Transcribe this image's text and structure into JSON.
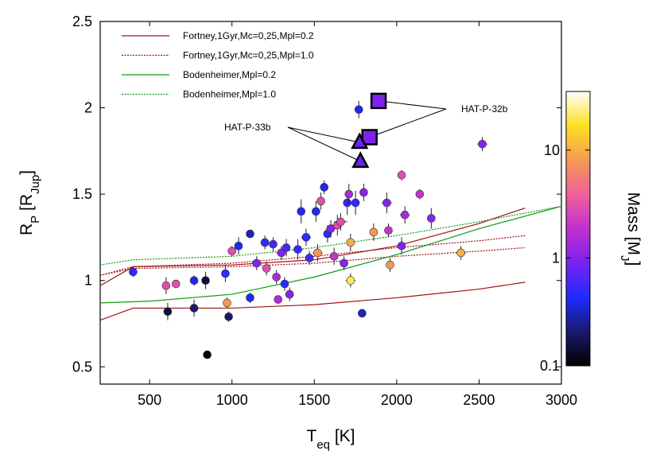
{
  "chart_data": {
    "type": "scatter",
    "x_label": [
      "T",
      "eq",
      " [K]"
    ],
    "y_label": [
      "R",
      "P",
      " [R",
      "Jup",
      "]"
    ],
    "color_label": [
      "Mass [M",
      "J",
      "]"
    ],
    "xlim": [
      200,
      3000
    ],
    "xticks": [
      500,
      1000,
      1500,
      2000,
      2500,
      3000
    ],
    "ylim": [
      0.4,
      2.5
    ],
    "yticks": [
      0.5,
      1,
      1.5,
      2,
      2.5
    ],
    "clim": [
      0.1,
      35
    ],
    "cticks": [
      0.1,
      1,
      10
    ],
    "color_log": true,
    "colormap": [
      "#000000",
      "#1a1a6e",
      "#1e2bff",
      "#7a22ee",
      "#c030d0",
      "#f0609a",
      "#f59a50",
      "#ffe020",
      "#ffffff"
    ],
    "legend": "upper-left",
    "lines": [
      {
        "name": "Fortney,1Gyr,Mc=0,25,Mpl=0.2",
        "color": "#a01010",
        "dash": "solid",
        "curves": [
          {
            "x": [
              200,
              400,
              1000,
              1500,
              2000,
              2500,
              2780
            ],
            "y": [
              0.97,
              1.08,
              1.09,
              1.12,
              1.2,
              1.33,
              1.42
            ]
          },
          {
            "x": [
              200,
              400,
              1000,
              1500,
              2000,
              2500,
              2780
            ],
            "y": [
              0.77,
              0.84,
              0.84,
              0.86,
              0.9,
              0.95,
              0.99
            ]
          }
        ]
      },
      {
        "name": "Fortney,1Gyr,Mc=0,25,Mpl=1.0",
        "color": "#a01010",
        "dash": "dotted",
        "curves": [
          {
            "x": [
              200,
              400,
              1000,
              1500,
              2000,
              2500,
              2780
            ],
            "y": [
              1.03,
              1.08,
              1.1,
              1.14,
              1.19,
              1.23,
              1.26
            ]
          },
          {
            "x": [
              200,
              400,
              1000,
              1500,
              2000,
              2500,
              2780
            ],
            "y": [
              1.03,
              1.07,
              1.08,
              1.1,
              1.14,
              1.17,
              1.19
            ]
          }
        ]
      },
      {
        "name": "Bodenheimer,Mpl=0.2",
        "color": "#109a10",
        "dash": "solid",
        "curves": [
          {
            "x": [
              200,
              500,
              1000,
              1500,
              2000,
              2500,
              3000
            ],
            "y": [
              0.87,
              0.88,
              0.92,
              1.02,
              1.15,
              1.3,
              1.43
            ]
          }
        ]
      },
      {
        "name": "Bodenheimer,Mpl=1.0",
        "color": "#109a10",
        "dash": "dotted",
        "curves": [
          {
            "x": [
              200,
              400,
              1000,
              1500,
              2000,
              2500,
              3000
            ],
            "y": [
              1.09,
              1.12,
              1.14,
              1.19,
              1.26,
              1.34,
              1.43
            ]
          }
        ]
      }
    ],
    "points": {
      "x": [
        400,
        600,
        610,
        660,
        770,
        770,
        840,
        850,
        960,
        970,
        980,
        1000,
        1040,
        1110,
        1110,
        1150,
        1200,
        1210,
        1250,
        1270,
        1280,
        1300,
        1320,
        1330,
        1350,
        1400,
        1420,
        1450,
        1470,
        1510,
        1520,
        1540,
        1560,
        1580,
        1600,
        1620,
        1640,
        1660,
        1680,
        1700,
        1710,
        1720,
        1720,
        1750,
        1790,
        1800,
        1860,
        1940,
        1950,
        1960,
        2030,
        2030,
        2050,
        2140,
        2210,
        2390,
        2520,
        1770
      ],
      "y": [
        1.05,
        0.97,
        0.82,
        0.98,
        1.0,
        0.84,
        1.0,
        0.57,
        1.04,
        0.87,
        0.79,
        1.17,
        1.2,
        1.27,
        0.9,
        1.1,
        1.22,
        1.07,
        1.21,
        1.02,
        0.89,
        1.16,
        0.98,
        1.19,
        0.92,
        1.18,
        1.4,
        1.25,
        1.13,
        1.4,
        1.16,
        1.46,
        1.54,
        1.27,
        1.3,
        1.14,
        1.32,
        1.34,
        1.1,
        1.45,
        1.5,
        1.22,
        1.0,
        1.45,
        0.81,
        1.51,
        1.28,
        1.45,
        1.29,
        1.09,
        1.61,
        1.2,
        1.38,
        1.5,
        1.36,
        1.16,
        1.79,
        1.99
      ],
      "mass": [
        0.5,
        3,
        0.15,
        3,
        0.4,
        0.2,
        0.15,
        0.1,
        0.5,
        8,
        0.2,
        3,
        0.4,
        0.3,
        0.4,
        1,
        0.5,
        3,
        0.6,
        1.5,
        1.5,
        1,
        0.5,
        0.6,
        1,
        0.5,
        0.4,
        0.5,
        0.6,
        0.4,
        8,
        3,
        0.4,
        0.5,
        1,
        2,
        3,
        3,
        1,
        0.5,
        1.5,
        10,
        20,
        0.5,
        0.3,
        1,
        8,
        1,
        2,
        8,
        3,
        1,
        1.5,
        2,
        1,
        10,
        1,
        0.4
      ],
      "xerr": [
        0,
        20,
        20,
        0,
        20,
        20,
        20,
        0,
        20,
        0,
        20,
        20,
        20,
        20,
        20,
        30,
        20,
        20,
        20,
        20,
        0,
        30,
        20,
        20,
        20,
        30,
        20,
        30,
        20,
        20,
        30,
        20,
        20,
        20,
        30,
        20,
        30,
        40,
        20,
        20,
        20,
        20,
        30,
        20,
        20,
        20,
        20,
        30,
        20,
        20,
        20,
        20,
        30,
        20,
        20,
        30,
        30,
        20
      ],
      "yerr": [
        0.03,
        0.05,
        0.05,
        0.02,
        0.03,
        0.05,
        0.05,
        0.01,
        0.05,
        0.03,
        0.03,
        0.03,
        0.05,
        0.02,
        0.03,
        0.04,
        0.04,
        0.04,
        0.04,
        0.04,
        0.02,
        0.04,
        0.04,
        0.05,
        0.04,
        0.06,
        0.07,
        0.05,
        0.04,
        0.06,
        0.05,
        0.05,
        0.04,
        0.05,
        0.05,
        0.05,
        0.06,
        0.05,
        0.04,
        0.07,
        0.06,
        0.05,
        0.04,
        0.07,
        0.02,
        0.05,
        0.05,
        0.06,
        0.04,
        0.04,
        0.03,
        0.05,
        0.05,
        0.03,
        0.06,
        0.04,
        0.04,
        0.05
      ]
    },
    "highlights": [
      {
        "label": "HAT-P-32b",
        "marker": "square",
        "x": [
          1890,
          1835
        ],
        "y": [
          2.04,
          1.83
        ],
        "mass": [
          0.94,
          0.94
        ]
      },
      {
        "label": "HAT-P-33b",
        "marker": "triangle",
        "x": [
          1775,
          1780
        ],
        "y": [
          1.8,
          1.69
        ],
        "mass": [
          0.76,
          0.76
        ]
      }
    ]
  }
}
